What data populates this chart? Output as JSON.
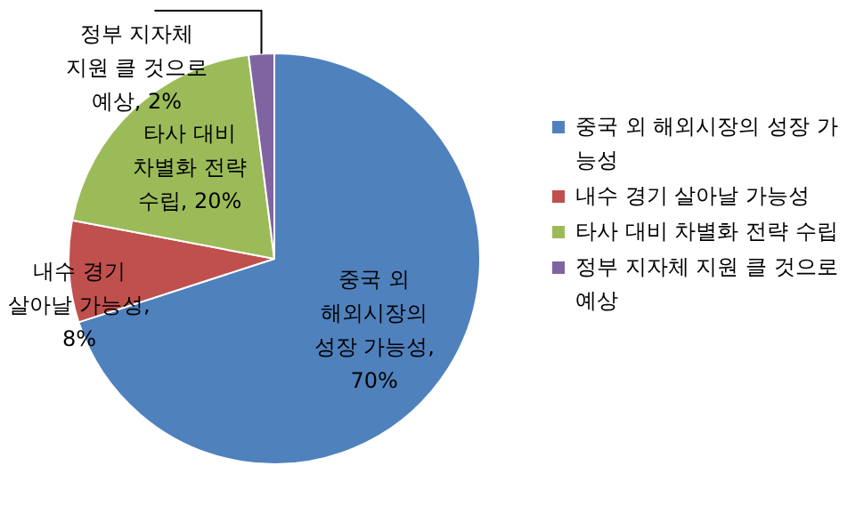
{
  "chart_data": {
    "type": "pie",
    "categories": [
      "중국 외 해외시장의 성장 가능성",
      "내수 경기 살아날 가능성",
      "타사 대비 차별화 전략 수립",
      "정부 지자체 지원 클 것으로 예상"
    ],
    "values": [
      70,
      8,
      20,
      2
    ],
    "colors": [
      "#4f81bd",
      "#c0504d",
      "#9bbb59",
      "#8064a2"
    ],
    "value_labels": [
      "중국 외 해외시장의 성장 가능성, 70%",
      "내수 경기 살아날 가능성, 8%",
      "타사 대비 차별화 전략 수립, 20%",
      "정부 지자체 지원 클 것으로 예상, 2%"
    ],
    "legend": "right"
  }
}
